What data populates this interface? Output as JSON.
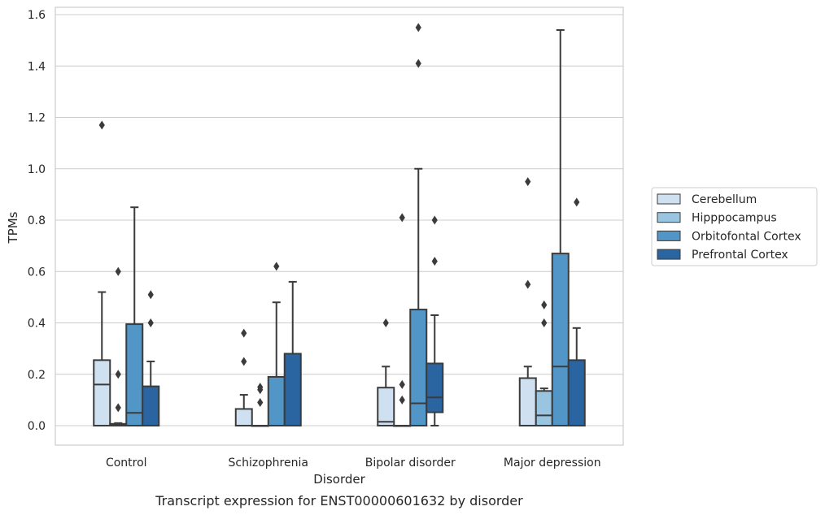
{
  "chart_data": {
    "type": "box",
    "title": "",
    "caption": "Transcript expression for ENST00000601632 by disorder",
    "xlabel": "Disorder",
    "ylabel": "TPMs",
    "ylim": [
      -0.075,
      1.63
    ],
    "yticks": [
      0.0,
      0.2,
      0.4,
      0.6,
      0.8,
      1.0,
      1.2,
      1.4,
      1.6
    ],
    "ytick_labels": [
      "0.0",
      "0.2",
      "0.4",
      "0.6",
      "0.8",
      "1.0",
      "1.2",
      "1.4",
      "1.6"
    ],
    "grid": "horizontal",
    "legend_position": "right",
    "categories": [
      "Control",
      "Schizophrenia",
      "Bipolar disorder",
      "Major depression"
    ],
    "series": [
      {
        "name": "Cerebellum",
        "color": "#cfe1f1",
        "boxes": [
          {
            "q1": 0.0,
            "median": 0.16,
            "q3": 0.255,
            "whisker_low": 0.0,
            "whisker_high": 0.52,
            "outliers": [
              1.17
            ]
          },
          {
            "q1": 0.0,
            "median": 0.0,
            "q3": 0.065,
            "whisker_low": 0.0,
            "whisker_high": 0.12,
            "outliers": [
              0.25,
              0.36
            ]
          },
          {
            "q1": 0.0,
            "median": 0.015,
            "q3": 0.148,
            "whisker_low": 0.0,
            "whisker_high": 0.23,
            "outliers": [
              0.4
            ]
          },
          {
            "q1": 0.0,
            "median": 0.0,
            "q3": 0.185,
            "whisker_low": 0.0,
            "whisker_high": 0.23,
            "outliers": [
              0.55,
              0.95
            ]
          }
        ]
      },
      {
        "name": "Hipppocampus",
        "color": "#9ac5e0",
        "boxes": [
          {
            "q1": 0.0,
            "median": 0.003,
            "q3": 0.007,
            "whisker_low": 0.0,
            "whisker_high": 0.01,
            "outliers": [
              0.07,
              0.2,
              0.6
            ]
          },
          {
            "q1": 0.0,
            "median": 0.0,
            "q3": 0.0,
            "whisker_low": 0.0,
            "whisker_high": 0.0,
            "outliers": [
              0.09,
              0.14,
              0.15
            ]
          },
          {
            "q1": 0.0,
            "median": 0.0,
            "q3": 0.0,
            "whisker_low": 0.0,
            "whisker_high": 0.0,
            "outliers": [
              0.1,
              0.16,
              0.81
            ]
          },
          {
            "q1": 0.0,
            "median": 0.04,
            "q3": 0.135,
            "whisker_low": 0.0,
            "whisker_high": 0.145,
            "outliers": [
              0.4,
              0.47
            ]
          }
        ]
      },
      {
        "name": "Orbitofontal Cortex",
        "color": "#5196c6",
        "boxes": [
          {
            "q1": 0.0,
            "median": 0.05,
            "q3": 0.395,
            "whisker_low": 0.0,
            "whisker_high": 0.85,
            "outliers": []
          },
          {
            "q1": 0.0,
            "median": 0.0,
            "q3": 0.19,
            "whisker_low": 0.0,
            "whisker_high": 0.48,
            "outliers": [
              0.62
            ]
          },
          {
            "q1": 0.0,
            "median": 0.087,
            "q3": 0.452,
            "whisker_low": 0.0,
            "whisker_high": 1.0,
            "outliers": [
              1.41,
              1.55
            ]
          },
          {
            "q1": 0.0,
            "median": 0.23,
            "q3": 0.67,
            "whisker_low": 0.0,
            "whisker_high": 1.54,
            "outliers": []
          }
        ]
      },
      {
        "name": "Prefrontal Cortex",
        "color": "#2a65a2",
        "boxes": [
          {
            "q1": 0.0,
            "median": 0.0,
            "q3": 0.153,
            "whisker_low": 0.0,
            "whisker_high": 0.25,
            "outliers": [
              0.4,
              0.51
            ]
          },
          {
            "q1": 0.0,
            "median": 0.0,
            "q3": 0.28,
            "whisker_low": 0.0,
            "whisker_high": 0.56,
            "outliers": []
          },
          {
            "q1": 0.052,
            "median": 0.11,
            "q3": 0.242,
            "whisker_low": 0.0,
            "whisker_high": 0.43,
            "outliers": [
              0.64,
              0.8
            ]
          },
          {
            "q1": 0.0,
            "median": 0.0,
            "q3": 0.255,
            "whisker_low": 0.0,
            "whisker_high": 0.38,
            "outliers": [
              0.87
            ]
          }
        ]
      }
    ]
  }
}
